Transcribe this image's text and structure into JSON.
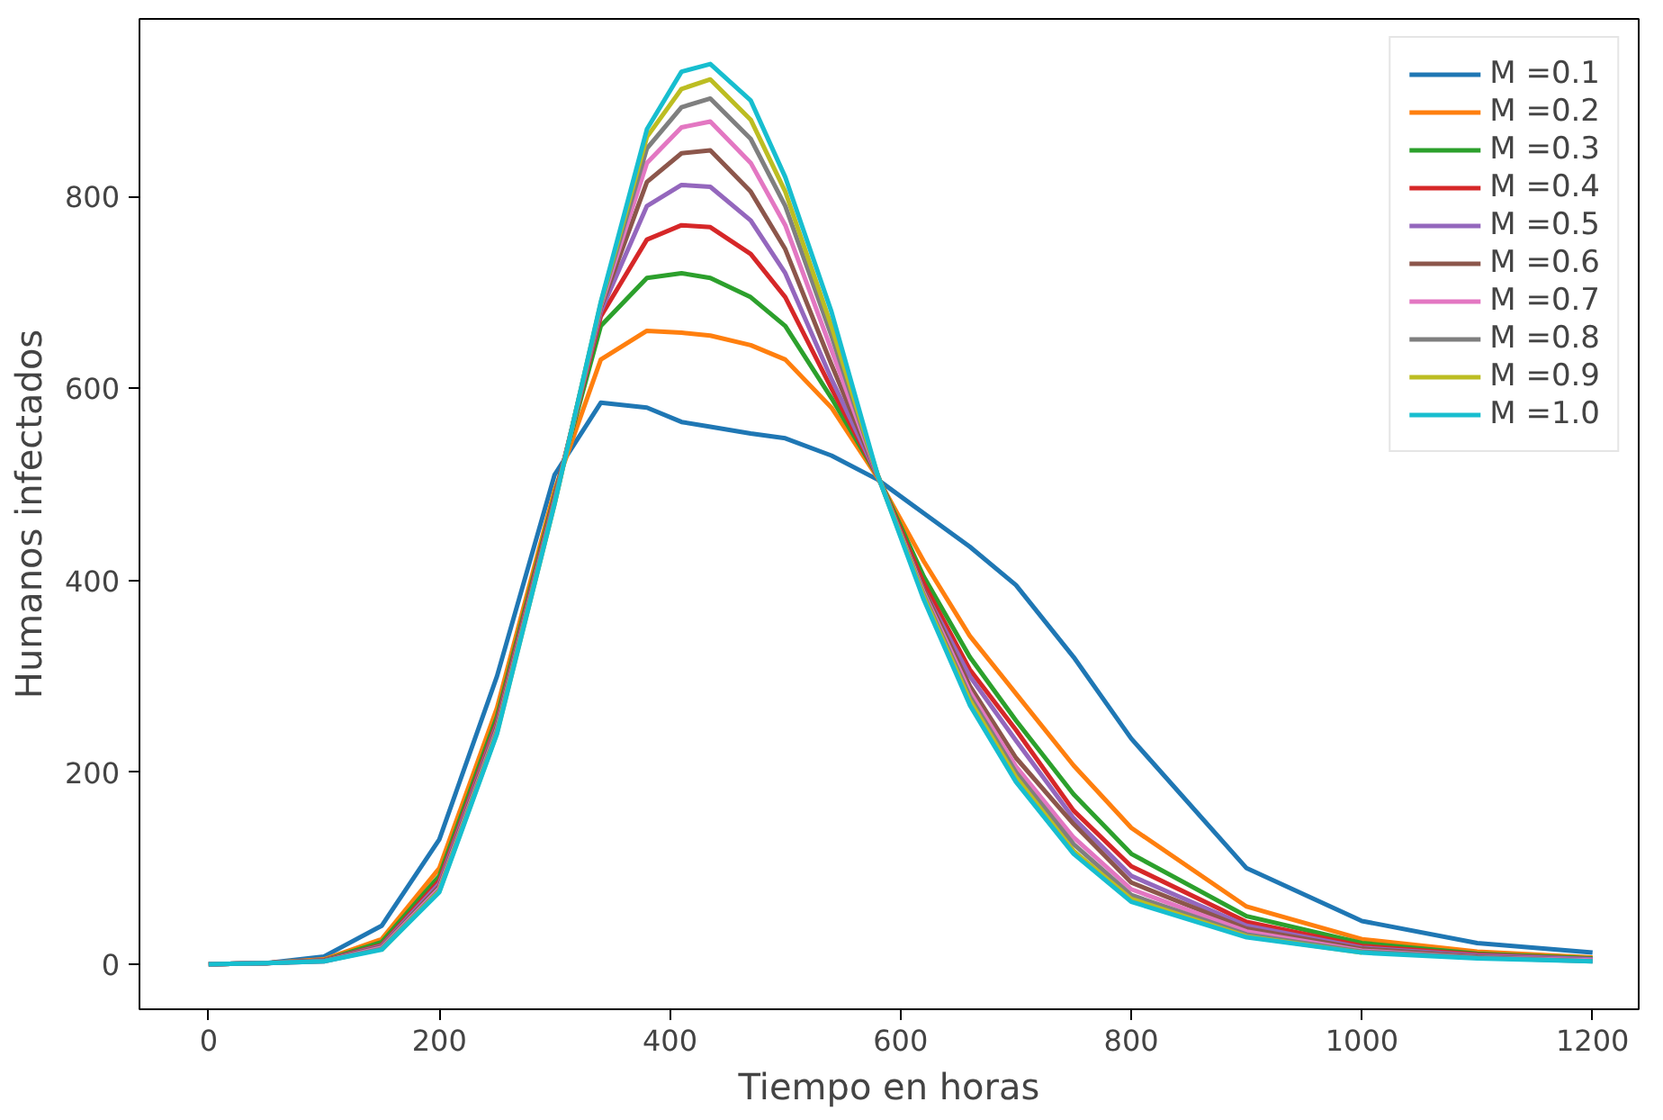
{
  "chart_data": {
    "type": "line",
    "xlabel": "Tiempo en horas",
    "ylabel": "Humanos infectados",
    "x": [
      0,
      50,
      100,
      150,
      200,
      250,
      300,
      340,
      380,
      410,
      435,
      470,
      500,
      540,
      580,
      620,
      660,
      700,
      750,
      800,
      900,
      1000,
      1100,
      1200
    ],
    "xlim": [
      -60,
      1240
    ],
    "ylim": [
      -47,
      985
    ],
    "xticks": [
      0,
      200,
      400,
      600,
      800,
      1000,
      1200
    ],
    "yticks": [
      0,
      200,
      400,
      600,
      800
    ],
    "grid": false,
    "legend": "top right",
    "line_style": "solid",
    "marker": "none",
    "series": [
      {
        "name": "M =0.1",
        "color": "#1f77b4",
        "values": [
          0,
          1,
          8,
          40,
          130,
          300,
          510,
          585,
          580,
          565,
          560,
          553,
          548,
          530,
          505,
          470,
          435,
          395,
          320,
          235,
          100,
          45,
          22,
          12
        ]
      },
      {
        "name": "M =0.2",
        "color": "#ff7f0e",
        "values": [
          0,
          1,
          5,
          26,
          100,
          267,
          494,
          630,
          660,
          658,
          655,
          645,
          630,
          580,
          507,
          420,
          342,
          282,
          207,
          142,
          60,
          26,
          13,
          7
        ]
      },
      {
        "name": "M =0.3",
        "color": "#2ca02c",
        "values": [
          0,
          1,
          4,
          23,
          92,
          258,
          489,
          665,
          715,
          720,
          715,
          695,
          665,
          590,
          509,
          404,
          320,
          254,
          177,
          115,
          50,
          22,
          11,
          6
        ]
      },
      {
        "name": "M =0.4",
        "color": "#d62728",
        "values": [
          0,
          1,
          4,
          20,
          87,
          253,
          487,
          675,
          755,
          770,
          768,
          740,
          695,
          600,
          509,
          397,
          307,
          244,
          160,
          102,
          44,
          19,
          10,
          5
        ]
      },
      {
        "name": "M =0.5",
        "color": "#9467bd",
        "values": [
          0,
          1,
          4,
          19,
          84,
          250,
          485,
          680,
          790,
          812,
          810,
          775,
          720,
          610,
          509,
          390,
          300,
          233,
          152,
          92,
          40,
          17,
          9,
          5
        ]
      },
      {
        "name": "M =0.6",
        "color": "#8c564b",
        "values": [
          0,
          1,
          4,
          18,
          81,
          248,
          484,
          684,
          815,
          845,
          848,
          805,
          745,
          625,
          510,
          390,
          290,
          215,
          146,
          85,
          37,
          16,
          8,
          4
        ]
      },
      {
        "name": "M =0.7",
        "color": "#e377c2",
        "values": [
          0,
          1,
          3,
          17,
          79,
          245,
          482,
          686,
          835,
          872,
          878,
          835,
          770,
          640,
          510,
          387,
          284,
          206,
          132,
          78,
          34,
          14,
          7,
          4
        ]
      },
      {
        "name": "M =0.8",
        "color": "#7f7f7f",
        "values": [
          0,
          1,
          3,
          16,
          77,
          243,
          481,
          688,
          850,
          893,
          902,
          860,
          790,
          655,
          510,
          385,
          279,
          200,
          125,
          72,
          31,
          13,
          7,
          3
        ]
      },
      {
        "name": "M =0.9",
        "color": "#bcbd22",
        "values": [
          null,
          null,
          null,
          15,
          76,
          241,
          480,
          689,
          862,
          912,
          922,
          880,
          805,
          665,
          510,
          383,
          275,
          195,
          118,
          68,
          29,
          12,
          null,
          null
        ]
      },
      {
        "name": "M =1.0",
        "color": "#17becf",
        "values": [
          0,
          1,
          3,
          15,
          75,
          240,
          480,
          690,
          870,
          930,
          938,
          900,
          820,
          680,
          510,
          380,
          270,
          190,
          115,
          65,
          28,
          12,
          6,
          3
        ]
      }
    ]
  }
}
